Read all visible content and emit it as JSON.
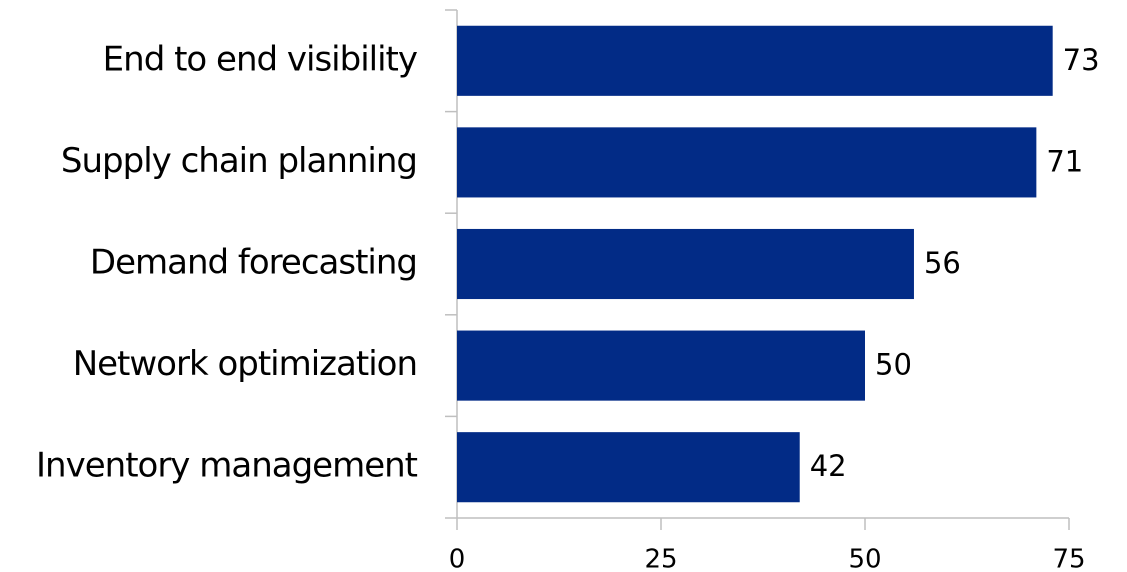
{
  "chart_data": {
    "type": "bar",
    "orientation": "horizontal",
    "categories": [
      "End to end visibility",
      "Supply chain planning",
      "Demand forecasting",
      "Network optimization",
      "Inventory management"
    ],
    "values": [
      73,
      71,
      56,
      50,
      42
    ],
    "color": "#022b86",
    "xlim": [
      0,
      75
    ],
    "xticks": [
      0,
      25,
      50,
      75
    ],
    "grid": false
  }
}
